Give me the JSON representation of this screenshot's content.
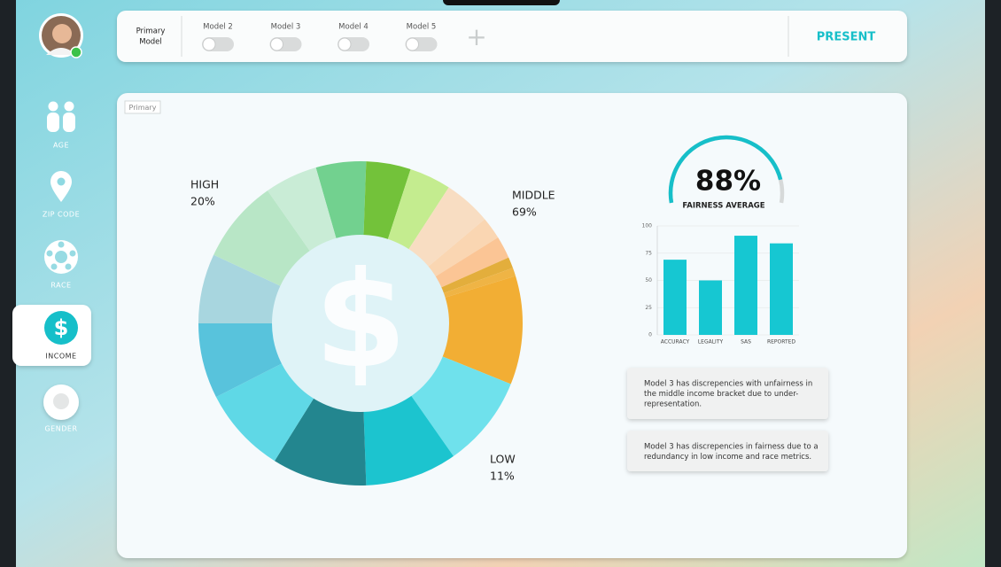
{
  "user": {
    "status": "online"
  },
  "sidebar": [
    {
      "label": "AGE"
    },
    {
      "label": "ZIP CODE"
    },
    {
      "label": "RACE"
    },
    {
      "label": "INCOME",
      "icon": "$"
    },
    {
      "label": "GENDER"
    }
  ],
  "toolbar": {
    "primary": [
      "Primary",
      "Model"
    ],
    "models": [
      "Model 2",
      "Model 3",
      "Model 4",
      "Model 5"
    ],
    "add": "+",
    "present": "PRESENT"
  },
  "panel": {
    "tag": "Primary"
  },
  "donut": {
    "labels": [
      {
        "name": "HIGH",
        "value": "20%"
      },
      {
        "name": "MIDDLE",
        "value": "69%"
      },
      {
        "name": "LOW",
        "value": "11%"
      }
    ]
  },
  "gauge": {
    "value": 88,
    "label": "88%",
    "caption": "FAIRNESS AVERAGE"
  },
  "chart_data": {
    "type": "bar",
    "categories": [
      "ACCURACY",
      "LEGALITY",
      "SAS",
      "REPORTED"
    ],
    "values": [
      69,
      50,
      91,
      84
    ],
    "color": "#16c7d2",
    "ylim": [
      0,
      100
    ],
    "yticks": [
      0,
      25,
      50,
      75,
      100
    ],
    "grid": true
  },
  "notes": [
    [
      "Model 3 has discrepencies with unfairness in",
      "the middle income bracket due to under-",
      "representation."
    ],
    [
      "Model 3 has discrepencies in fairness due to a",
      "redundancy in low income and race metrics."
    ]
  ]
}
